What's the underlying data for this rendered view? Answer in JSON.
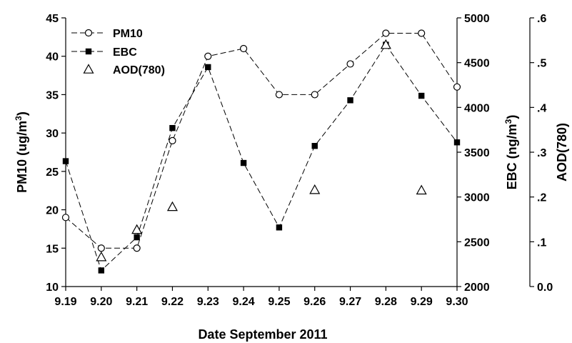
{
  "chart_data": {
    "type": "line",
    "x_categories": [
      "9.19",
      "9.20",
      "9.21",
      "9.22",
      "9.23",
      "9.24",
      "9.25",
      "9.26",
      "9.27",
      "9.28",
      "9.29",
      "9.30"
    ],
    "xlabel": "Date September 2011",
    "axes": {
      "left": {
        "label_main": "PM10 (ug/m",
        "label_sup": "3",
        "label_end": ")",
        "ylim": [
          10,
          45
        ],
        "ticks": [
          "10",
          "15",
          "20",
          "25",
          "30",
          "35",
          "40",
          "45"
        ]
      },
      "right1": {
        "label_main": "EBC (ng/m",
        "label_sup": "3",
        "label_end": ")",
        "ylim": [
          2000,
          5000
        ],
        "ticks": [
          "2000",
          "2500",
          "3000",
          "3500",
          "4000",
          "4500",
          "5000"
        ]
      },
      "right2": {
        "label": "AOD(780)",
        "ylim": [
          0,
          0.6
        ],
        "ticks": [
          "0.0",
          ".1",
          ".2",
          ".3",
          ".4",
          ".5",
          ".6"
        ]
      }
    },
    "series": [
      {
        "name": "PM10",
        "axis": "left",
        "marker": "open-circle",
        "line": "dashed",
        "x": [
          0,
          1,
          2,
          3,
          4,
          5,
          6,
          7,
          8,
          9,
          10,
          11
        ],
        "values": [
          19,
          15,
          15,
          29,
          40,
          41,
          35,
          35,
          39,
          43,
          43,
          36
        ]
      },
      {
        "name": "EBC",
        "axis": "right1",
        "marker": "filled-square",
        "line": "dashed",
        "x": [
          0,
          1,
          2,
          3,
          4,
          5,
          6,
          7,
          8,
          9,
          10,
          11
        ],
        "values": [
          3400,
          2180,
          2550,
          3770,
          4450,
          3380,
          2660,
          3570,
          4080,
          4700,
          4130,
          3610
        ]
      },
      {
        "name": "AOD(780)",
        "axis": "right2",
        "marker": "open-triangle",
        "line": "none",
        "x": [
          1,
          2,
          3,
          7,
          9,
          10
        ],
        "values": [
          0.066,
          0.127,
          0.178,
          0.216,
          0.54,
          0.215
        ]
      }
    ],
    "legend": {
      "position": "top-left",
      "entries": [
        "PM10",
        "EBC",
        "AOD(780)"
      ]
    }
  }
}
